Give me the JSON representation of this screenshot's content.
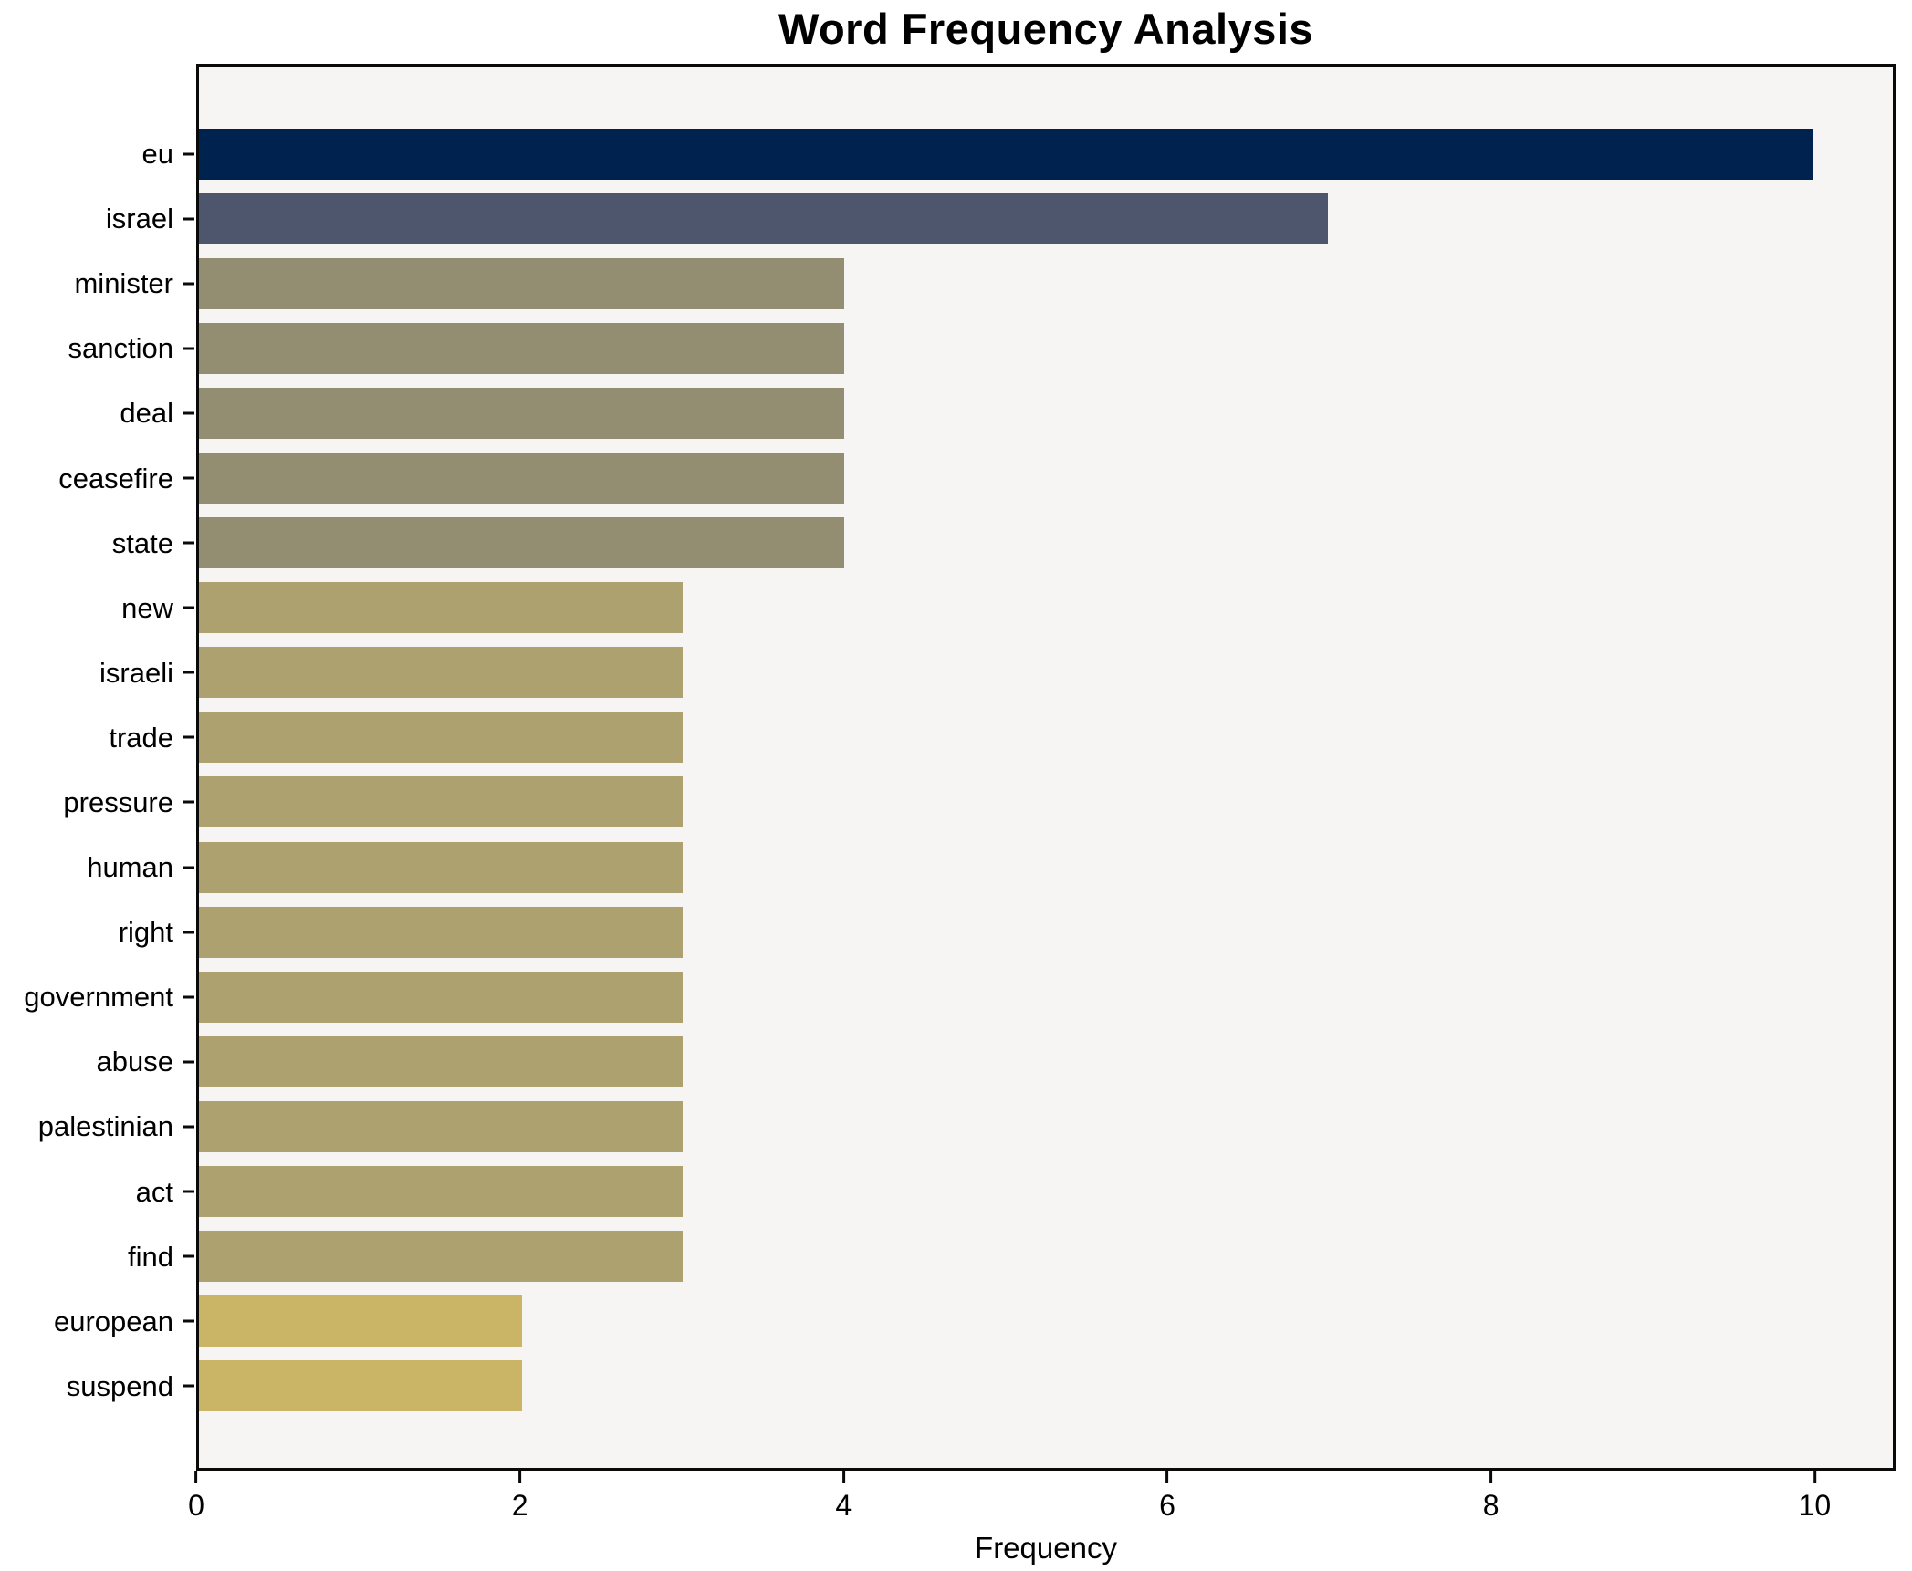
{
  "chart_data": {
    "type": "bar",
    "orientation": "horizontal",
    "title": "Word Frequency Analysis",
    "xlabel": "Frequency",
    "ylabel": "",
    "xlim": [
      0,
      10.5
    ],
    "xticks": [
      0,
      2,
      4,
      6,
      8,
      10
    ],
    "grid": false,
    "legend": "none",
    "plot_background": "#f6f5f4",
    "figure_background": "#ffffff",
    "spine_color": "#0a0a0a",
    "categories": [
      "eu",
      "israel",
      "minister",
      "sanction",
      "deal",
      "ceasefire",
      "state",
      "new",
      "israeli",
      "trade",
      "pressure",
      "human",
      "right",
      "government",
      "abuse",
      "palestinian",
      "act",
      "find",
      "european",
      "suspend"
    ],
    "values": [
      10,
      7,
      4,
      4,
      4,
      4,
      4,
      3,
      3,
      3,
      3,
      3,
      3,
      3,
      3,
      3,
      3,
      3,
      2,
      2
    ],
    "bar_colors": [
      "#00224e",
      "#4d566d",
      "#938d72",
      "#938d72",
      "#938d72",
      "#938d72",
      "#938d72",
      "#ada16f",
      "#ada16f",
      "#ada16f",
      "#ada16f",
      "#ada16f",
      "#ada16f",
      "#ada16f",
      "#ada16f",
      "#ada16f",
      "#ada16f",
      "#ada16f",
      "#c9b565",
      "#c9b565"
    ]
  }
}
